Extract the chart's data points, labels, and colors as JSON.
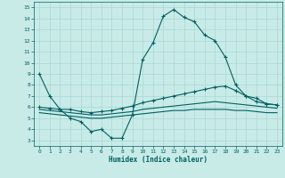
{
  "xlabel": "Humidex (Indice chaleur)",
  "xlim": [
    -0.5,
    23.5
  ],
  "ylim": [
    2.5,
    15.5
  ],
  "yticks": [
    3,
    4,
    5,
    6,
    7,
    8,
    9,
    10,
    11,
    12,
    13,
    14,
    15
  ],
  "xticks": [
    0,
    1,
    2,
    3,
    4,
    5,
    6,
    7,
    8,
    9,
    10,
    11,
    12,
    13,
    14,
    15,
    16,
    17,
    18,
    19,
    20,
    21,
    22,
    23
  ],
  "bg_color": "#c8ebe8",
  "grid_color": "#a8d8d4",
  "line_color": "#006060",
  "line1_x": [
    0,
    1,
    2,
    3,
    4,
    5,
    6,
    7,
    8,
    9,
    10,
    11,
    12,
    13,
    14,
    15,
    16,
    17,
    18,
    19,
    20,
    21,
    22,
    23
  ],
  "line1_y": [
    9.0,
    7.0,
    5.8,
    5.0,
    4.7,
    3.8,
    4.0,
    3.2,
    3.2,
    5.3,
    10.3,
    11.8,
    14.2,
    14.8,
    14.1,
    13.7,
    12.5,
    12.0,
    10.5,
    8.0,
    7.0,
    6.5,
    6.3,
    6.2
  ],
  "line2_x": [
    0,
    1,
    2,
    3,
    4,
    5,
    6,
    7,
    8,
    9,
    10,
    11,
    12,
    13,
    14,
    15,
    16,
    17,
    18,
    19,
    20,
    21,
    22,
    23
  ],
  "line2_y": [
    6.0,
    5.9,
    5.8,
    5.8,
    5.6,
    5.5,
    5.6,
    5.7,
    5.9,
    6.1,
    6.4,
    6.6,
    6.8,
    7.0,
    7.2,
    7.4,
    7.6,
    7.8,
    7.9,
    7.5,
    7.0,
    6.8,
    6.3,
    6.2
  ],
  "line3_x": [
    0,
    1,
    2,
    3,
    4,
    5,
    6,
    7,
    8,
    9,
    10,
    11,
    12,
    13,
    14,
    15,
    16,
    17,
    18,
    19,
    20,
    21,
    22,
    23
  ],
  "line3_y": [
    5.8,
    5.7,
    5.6,
    5.5,
    5.4,
    5.3,
    5.3,
    5.4,
    5.5,
    5.6,
    5.8,
    5.9,
    6.0,
    6.1,
    6.2,
    6.3,
    6.4,
    6.5,
    6.4,
    6.3,
    6.2,
    6.1,
    6.0,
    5.9
  ],
  "line4_x": [
    0,
    1,
    2,
    3,
    4,
    5,
    6,
    7,
    8,
    9,
    10,
    11,
    12,
    13,
    14,
    15,
    16,
    17,
    18,
    19,
    20,
    21,
    22,
    23
  ],
  "line4_y": [
    5.5,
    5.4,
    5.3,
    5.2,
    5.1,
    5.0,
    5.0,
    5.1,
    5.2,
    5.3,
    5.4,
    5.5,
    5.6,
    5.7,
    5.7,
    5.8,
    5.8,
    5.8,
    5.8,
    5.7,
    5.7,
    5.6,
    5.5,
    5.5
  ]
}
